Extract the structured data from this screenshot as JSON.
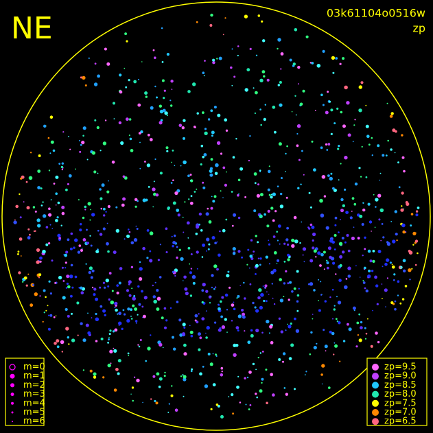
{
  "header": {
    "label": "NE",
    "frame_id": "03k61104o0516w",
    "mode": "zp"
  },
  "magnitude_legend": {
    "items": [
      "m=0",
      "m=1",
      "m=2",
      "m=3",
      "m=4",
      "m=5",
      "m=6"
    ],
    "color": "#ff00ff"
  },
  "zp_legend": {
    "items": [
      {
        "label": "zp=9.5",
        "color": "#ff66ff"
      },
      {
        "label": "zp=9.0",
        "color": "#c040ff"
      },
      {
        "label": "zp=8.5",
        "color": "#20c8ff"
      },
      {
        "label": "zp=8.0",
        "color": "#20e8b0"
      },
      {
        "label": "zp=7.5",
        "color": "#ffff00"
      },
      {
        "label": "zp=7.0",
        "color": "#ff8800"
      },
      {
        "label": "zp=6.5",
        "color": "#ff6680"
      }
    ]
  },
  "frame_color": "#ffff00"
}
